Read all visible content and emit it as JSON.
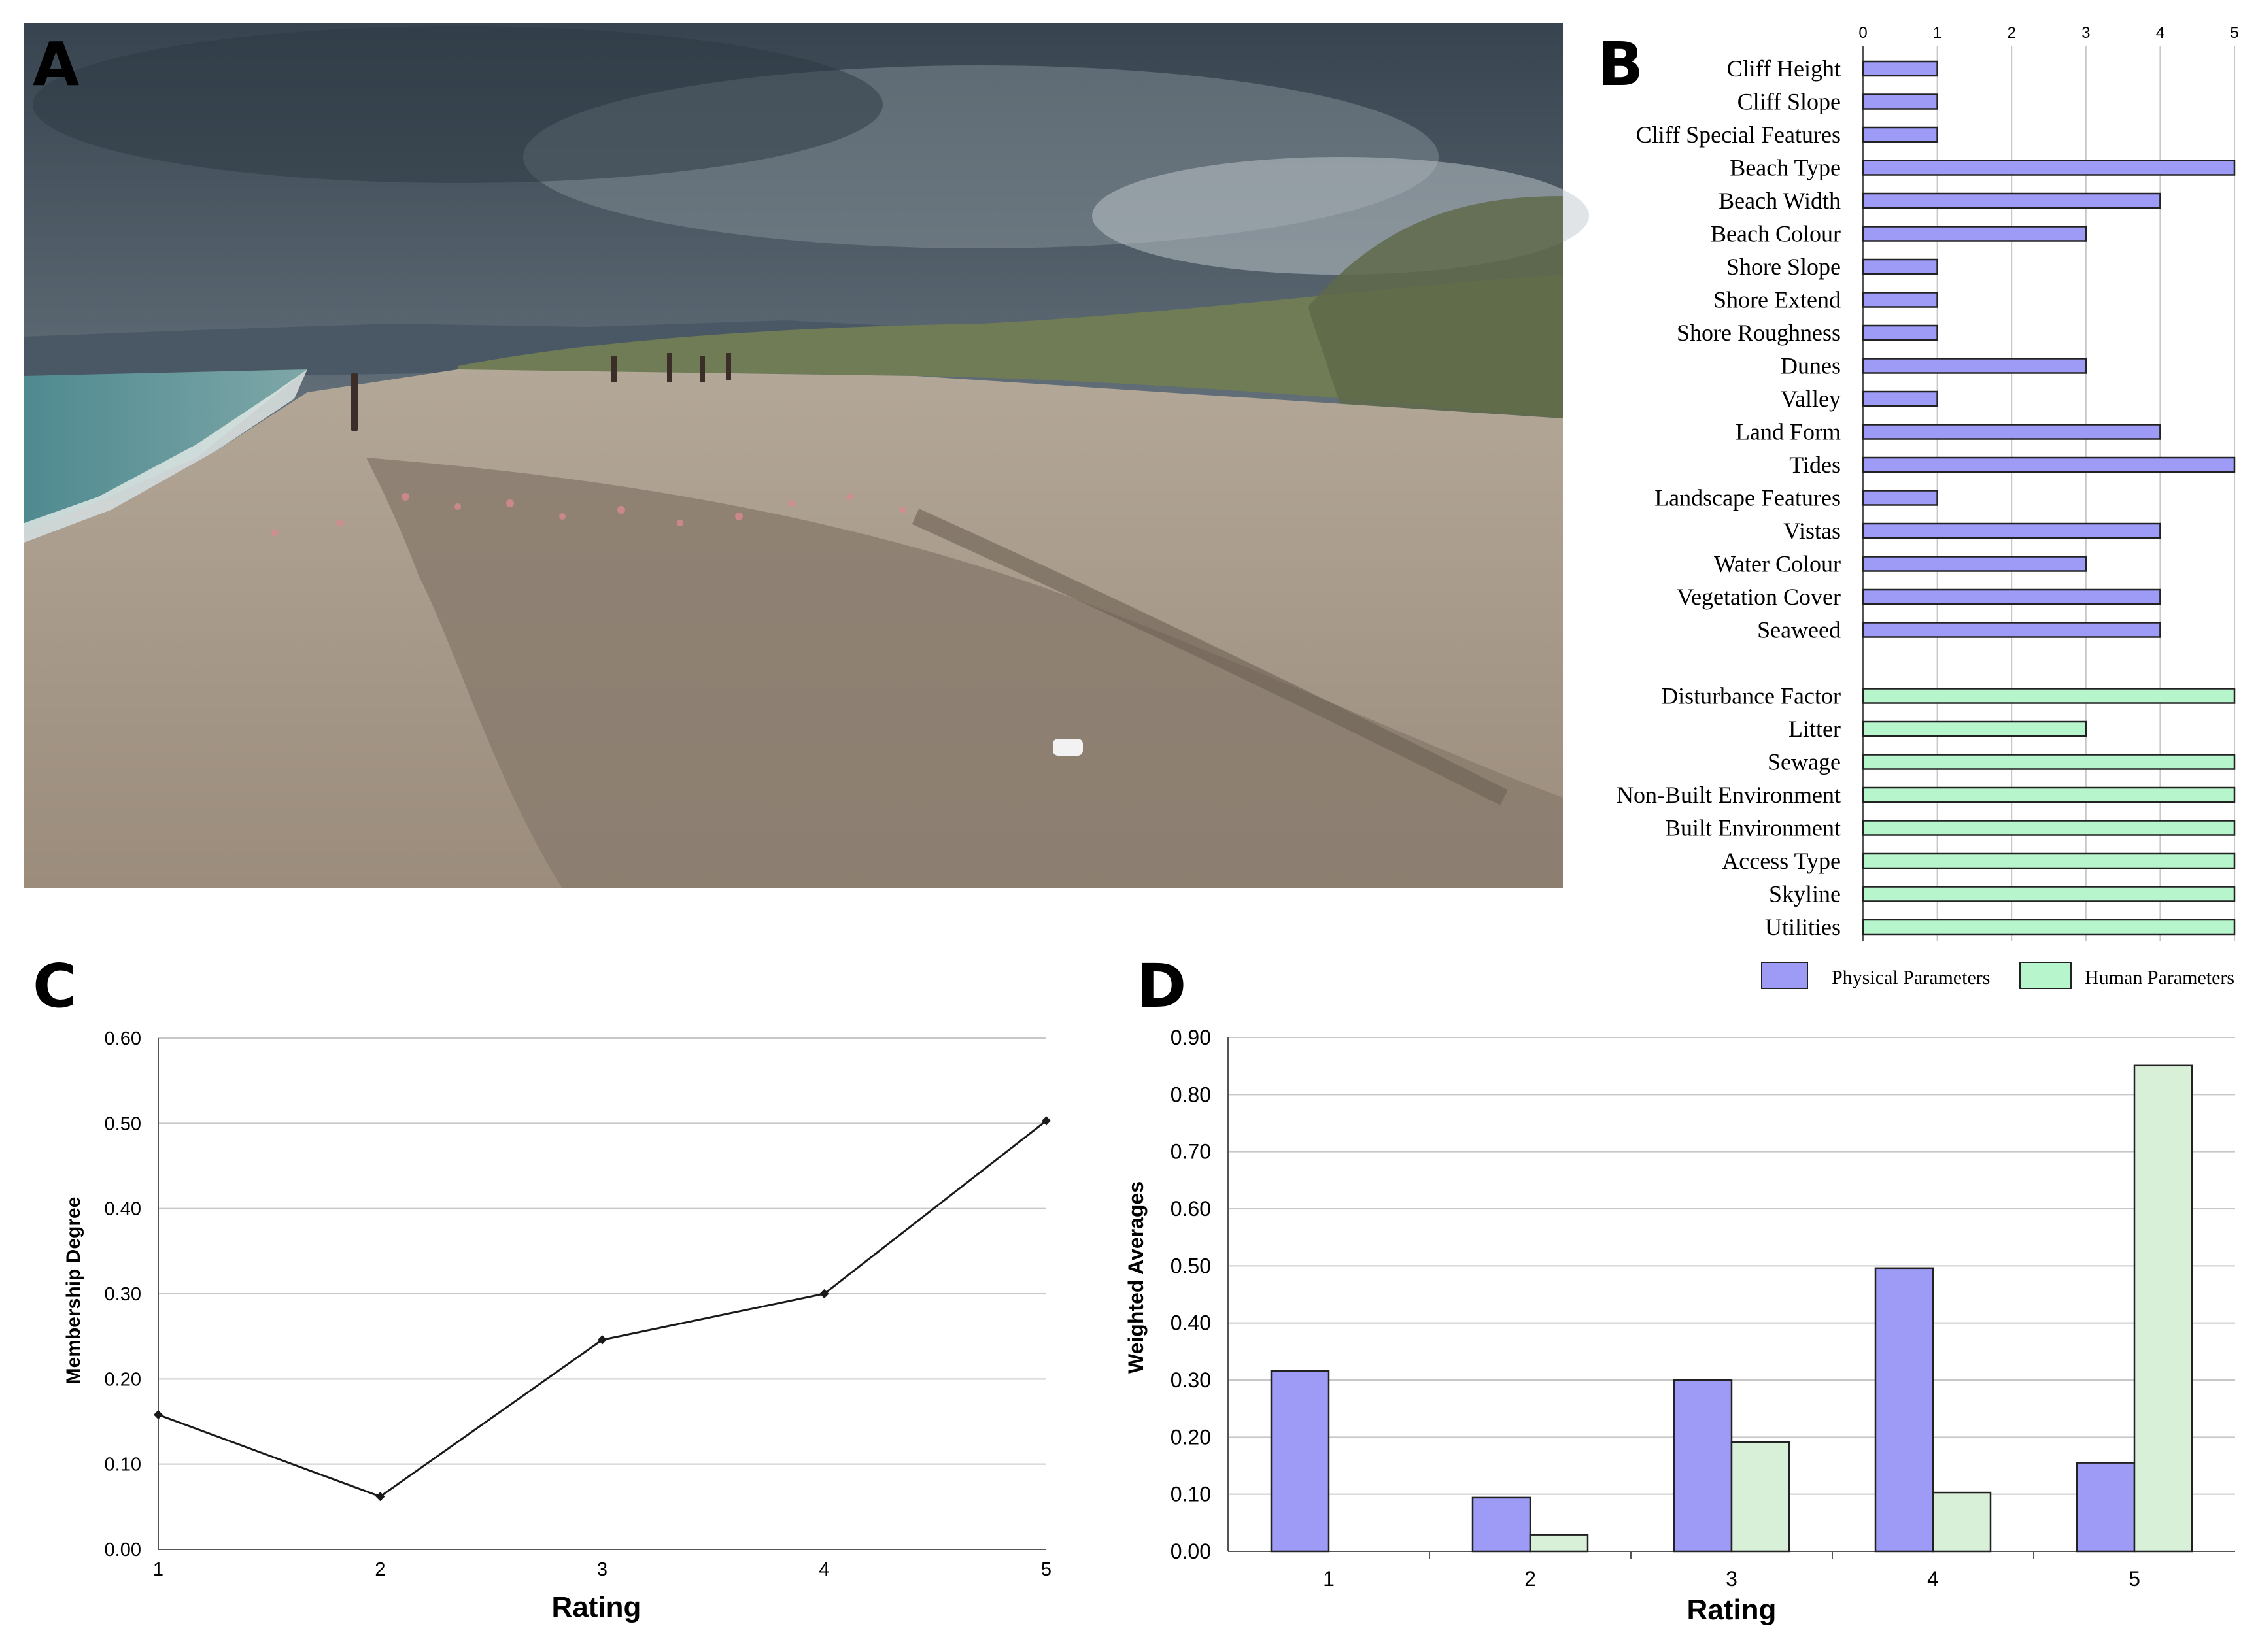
{
  "panels": {
    "a_label": "A",
    "b_label": "B",
    "c_label": "C",
    "d_label": "D"
  },
  "colors": {
    "physical": "#9d9bf5",
    "human": "#b7f5cc",
    "human_d": "#d8efd8",
    "grid": "#c8c8c8",
    "line": "#1a1a1a"
  },
  "photo": {
    "sky_top": "#3a4752",
    "sky_bottom": "#9aa5ad",
    "sea": "#5d8f93",
    "sand": "#a89a8a",
    "wet_sand": "#8a7d6f",
    "vegetation": "#6f7d56"
  },
  "chart_data": [
    {
      "id": "B",
      "type": "bar",
      "orientation": "horizontal",
      "xlim": [
        0,
        5
      ],
      "xticks": [
        "0",
        "1",
        "2",
        "3",
        "4",
        "5"
      ],
      "physical": {
        "categories": [
          "Cliff Height",
          "Cliff Slope",
          "Cliff Special Features",
          "Beach Type",
          "Beach Width",
          "Beach Colour",
          "Shore Slope",
          "Shore Extend",
          "Shore Roughness",
          "Dunes",
          "Valley",
          "Land Form",
          "Tides",
          "Landscape Features",
          "Vistas",
          "Water Colour",
          "Vegetation Cover",
          "Seaweed"
        ],
        "values": [
          1,
          1,
          1,
          5,
          4,
          3,
          1,
          1,
          1,
          3,
          1,
          4,
          5,
          1,
          4,
          3,
          4,
          4
        ]
      },
      "human": {
        "categories": [
          "Disturbance Factor",
          "Litter",
          "Sewage",
          "Non-Built Environment",
          "Built Environment",
          "Access Type",
          "Skyline",
          "Utilities"
        ],
        "values": [
          5,
          3,
          5,
          5,
          5,
          5,
          5,
          5
        ]
      },
      "legend": [
        "Physical Parameters",
        "Human Parameters"
      ],
      "legend_position": "bottom",
      "grid": true
    },
    {
      "id": "C",
      "type": "line",
      "x": [
        1,
        2,
        3,
        4,
        5
      ],
      "y": [
        0.158,
        0.062,
        0.246,
        0.3,
        0.503
      ],
      "xlabel": "Rating",
      "ylabel": "Membership Degree",
      "ylim": [
        0,
        0.6
      ],
      "yticks": [
        "0.00",
        "0.10",
        "0.20",
        "0.30",
        "0.40",
        "0.50",
        "0.60"
      ],
      "xticks": [
        "1",
        "2",
        "3",
        "4",
        "5"
      ],
      "grid": true
    },
    {
      "id": "D",
      "type": "bar",
      "categories": [
        "1",
        "2",
        "3",
        "4",
        "5"
      ],
      "series": [
        {
          "values": [
            0.316,
            0.094,
            0.3,
            0.496,
            0.155
          ]
        },
        {
          "values": [
            0,
            0.029,
            0.191,
            0.103,
            0.851
          ]
        }
      ],
      "xlabel": "Rating",
      "ylabel": "Weighted Averages",
      "ylim": [
        0,
        0.9
      ],
      "yticks": [
        "0.00",
        "0.10",
        "0.20",
        "0.30",
        "0.40",
        "0.50",
        "0.60",
        "0.70",
        "0.80",
        "0.90"
      ],
      "grid": true
    }
  ]
}
